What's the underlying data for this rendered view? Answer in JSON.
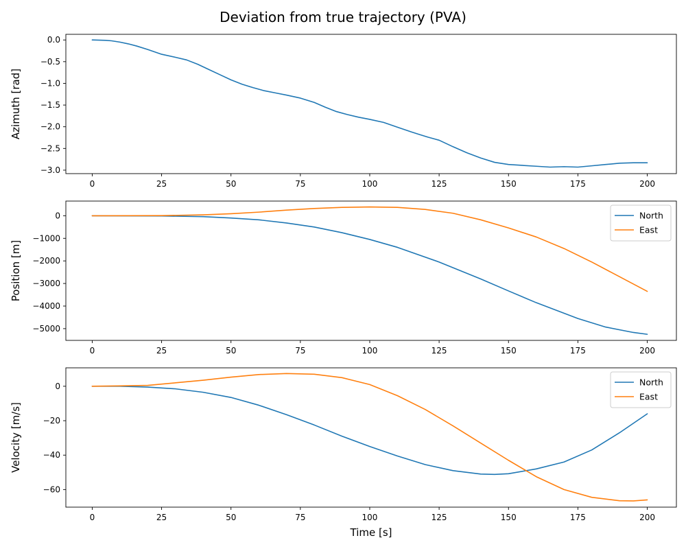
{
  "figure": {
    "title": "Deviation from true trajectory (PVA)"
  },
  "colors": {
    "blue": "#1f77b4",
    "orange": "#ff7f0e"
  },
  "chart_data": [
    {
      "type": "line",
      "ylabel": "Azimuth [rad]",
      "xlabel": "",
      "xlim": [
        -9.5,
        210.5
      ],
      "ylim": [
        -3.08,
        0.13
      ],
      "xticks": [
        0,
        25,
        50,
        75,
        100,
        125,
        150,
        175,
        200
      ],
      "yticks": [
        -3.0,
        -2.5,
        -2.0,
        -1.5,
        -1.0,
        -0.5,
        0.0
      ],
      "ytick_labels": [
        "−3.0",
        "−2.5",
        "−2.0",
        "−1.5",
        "−1.0",
        "−0.5",
        "0.0"
      ],
      "legend": null,
      "series": [
        {
          "color": "#1f77b4",
          "x": [
            0,
            5,
            7,
            10,
            13,
            16,
            20,
            25,
            30,
            34,
            38,
            42,
            46,
            50,
            54,
            58,
            62,
            66,
            70,
            75,
            80,
            84,
            88,
            92,
            96,
            100,
            105,
            110,
            115,
            118,
            121,
            125,
            130,
            135,
            140,
            145,
            150,
            155,
            160,
            165,
            170,
            175,
            180,
            185,
            190,
            195,
            200
          ],
          "y": [
            0.0,
            -0.01,
            -0.02,
            -0.05,
            -0.09,
            -0.14,
            -0.22,
            -0.33,
            -0.4,
            -0.46,
            -0.56,
            -0.68,
            -0.8,
            -0.92,
            -1.02,
            -1.1,
            -1.17,
            -1.22,
            -1.27,
            -1.34,
            -1.44,
            -1.55,
            -1.65,
            -1.72,
            -1.78,
            -1.83,
            -1.9,
            -2.01,
            -2.12,
            -2.18,
            -2.24,
            -2.31,
            -2.46,
            -2.6,
            -2.72,
            -2.82,
            -2.87,
            -2.89,
            -2.91,
            -2.93,
            -2.92,
            -2.93,
            -2.9,
            -2.87,
            -2.84,
            -2.83,
            -2.83
          ]
        }
      ]
    },
    {
      "type": "line",
      "ylabel": "Position [m]",
      "xlabel": "",
      "xlim": [
        -9.5,
        210.5
      ],
      "ylim": [
        -5520,
        650
      ],
      "xticks": [
        0,
        25,
        50,
        75,
        100,
        125,
        150,
        175,
        200
      ],
      "yticks": [
        -5000,
        -4000,
        -3000,
        -2000,
        -1000,
        0
      ],
      "ytick_labels": [
        "−5000",
        "−4000",
        "−3000",
        "−2000",
        "−1000",
        "0"
      ],
      "legend": "top-right",
      "series": [
        {
          "name": "North",
          "color": "#1f77b4",
          "x": [
            0,
            25,
            40,
            50,
            60,
            70,
            80,
            90,
            100,
            110,
            125,
            140,
            150,
            160,
            175,
            185,
            195,
            200
          ],
          "y": [
            0,
            -10,
            -40,
            -100,
            -180,
            -320,
            -500,
            -750,
            -1050,
            -1400,
            -2050,
            -2800,
            -3330,
            -3850,
            -4550,
            -4930,
            -5170,
            -5250
          ]
        },
        {
          "name": "East",
          "color": "#ff7f0e",
          "x": [
            0,
            25,
            40,
            50,
            60,
            70,
            80,
            90,
            100,
            110,
            120,
            130,
            140,
            150,
            160,
            170,
            180,
            190,
            200
          ],
          "y": [
            0,
            5,
            40,
            90,
            160,
            250,
            320,
            370,
            390,
            370,
            280,
            110,
            -180,
            -540,
            -940,
            -1450,
            -2050,
            -2700,
            -3350
          ]
        }
      ]
    },
    {
      "type": "line",
      "ylabel": "Velocity [m/s]",
      "xlabel": "Time [s]",
      "xlim": [
        -9.5,
        210.5
      ],
      "ylim": [
        -70.2,
        10.7
      ],
      "xticks": [
        0,
        25,
        50,
        75,
        100,
        125,
        150,
        175,
        200
      ],
      "yticks": [
        -60,
        -40,
        -20,
        0
      ],
      "ytick_labels": [
        "−60",
        "−40",
        "−20",
        "0"
      ],
      "legend": "top-right",
      "series": [
        {
          "name": "North",
          "color": "#1f77b4",
          "x": [
            0,
            10,
            20,
            30,
            40,
            50,
            60,
            70,
            80,
            90,
            100,
            110,
            120,
            130,
            140,
            145,
            150,
            160,
            170,
            180,
            190,
            200
          ],
          "y": [
            0,
            0,
            -0.5,
            -1.5,
            -3.5,
            -6.5,
            -11,
            -16.5,
            -22.5,
            -29,
            -35,
            -40.5,
            -45.5,
            -49,
            -51,
            -51.2,
            -50.8,
            -48,
            -44,
            -37,
            -27,
            -16
          ]
        },
        {
          "name": "East",
          "color": "#ff7f0e",
          "x": [
            0,
            10,
            20,
            30,
            40,
            50,
            60,
            70,
            80,
            90,
            100,
            110,
            120,
            130,
            140,
            150,
            160,
            170,
            180,
            190,
            195,
            200
          ],
          "y": [
            0,
            0.2,
            0.5,
            2,
            3.5,
            5.3,
            6.8,
            7.4,
            7,
            5,
            1,
            -5.5,
            -13.5,
            -23,
            -33,
            -43,
            -52.5,
            -60,
            -64.5,
            -66.5,
            -66.6,
            -66
          ]
        }
      ]
    }
  ]
}
